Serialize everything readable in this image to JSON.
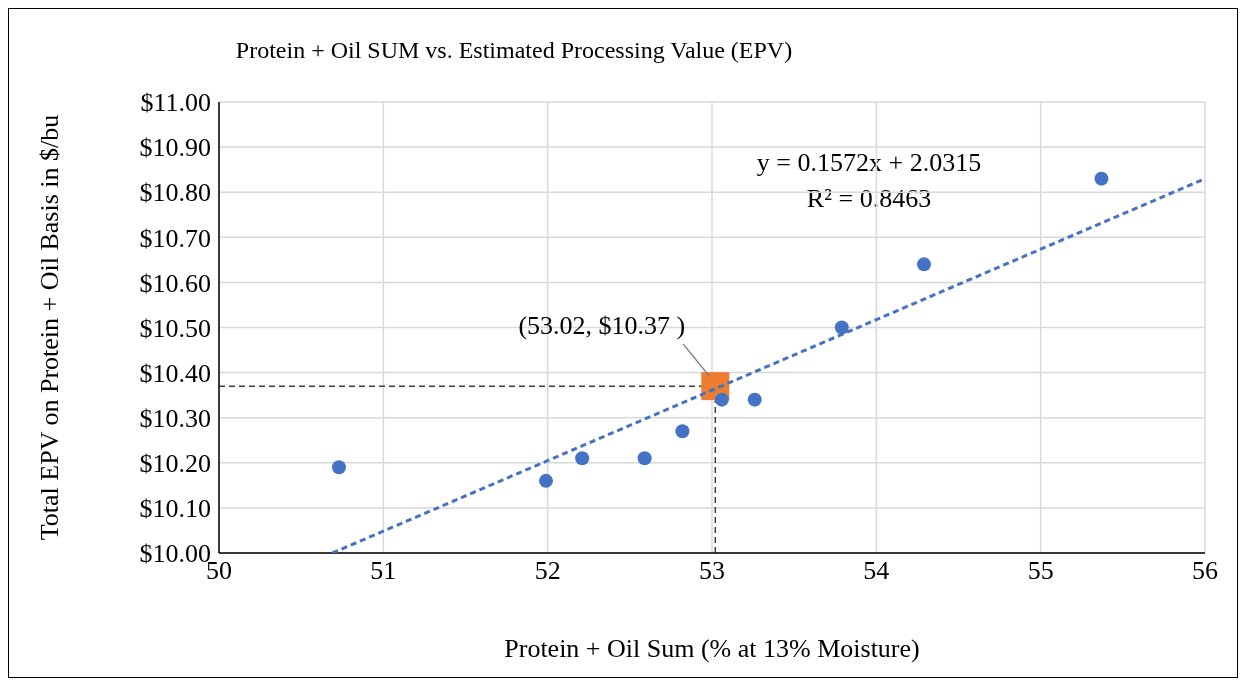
{
  "chart_data": {
    "type": "scatter",
    "title": "Protein + Oil SUM vs. Estimated Processing Value (EPV)",
    "xlabel": "Protein + Oil Sum (% at 13% Moisture)",
    "ylabel": "Total EPV on Protein + Oil Basis in $/bu",
    "series": [
      {
        "color": "#4472c4",
        "marker": "circle",
        "x": [
          50.73,
          51.99,
          52.21,
          52.59,
          52.82,
          53.06,
          53.26,
          53.79,
          54.29,
          55.37
        ],
        "values": [
          10.19,
          10.16,
          10.21,
          10.21,
          10.27,
          10.34,
          10.34,
          10.5,
          10.64,
          10.83
        ]
      },
      {
        "type": "line",
        "color": "#4472c4",
        "line_style": "dashed",
        "marker": "none",
        "x": [
          50.69,
          56
        ],
        "values": [
          10.0,
          10.83
        ]
      },
      {
        "color": "#ed7d31",
        "marker": "square",
        "x": [
          53.02
        ],
        "values": [
          10.37
        ]
      }
    ],
    "xlim": [
      50,
      56
    ],
    "xticks": [
      50,
      51,
      52,
      53,
      54,
      55,
      56
    ],
    "ylim": [
      10,
      11
    ],
    "yticks": [
      {
        "value": 10,
        "label": "$10.00"
      },
      {
        "value": 10.1,
        "label": "$10.10"
      },
      {
        "value": 10.2,
        "label": "$10.20"
      },
      {
        "value": 10.3,
        "label": "$10.30"
      },
      {
        "value": 10.4,
        "label": "$10.40"
      },
      {
        "value": 10.5,
        "label": "$10.50"
      },
      {
        "value": 10.6,
        "label": "$10.60"
      },
      {
        "value": 10.7,
        "label": "$10.70"
      },
      {
        "value": 10.8,
        "label": "$10.80"
      },
      {
        "value": 10.9,
        "label": "$10.90"
      },
      {
        "value": 11,
        "label": "$11.00"
      }
    ],
    "grid": true,
    "ref_lines": [
      {
        "axis": "y",
        "value": 10.37,
        "color": "#404040",
        "line_style": "dashed"
      },
      {
        "axis": "x",
        "value": 53.02,
        "color": "#404040",
        "line_style": "dashed"
      }
    ],
    "annotations": [
      "y = 0.1572x + 2.0315",
      "R² = 0.8463",
      {
        "text": "(53.02, $10.37 )",
        "x": 53.02,
        "y": 10.37
      }
    ]
  }
}
